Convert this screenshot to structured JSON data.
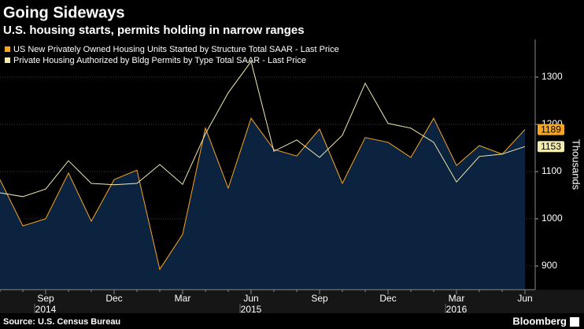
{
  "chart_data": {
    "type": "line",
    "title": "Going Sideways",
    "subtitle": "U.S. housing starts, permits holding in narrow ranges",
    "y_axis_label": "Thousands",
    "source": "Source: U.S. Census Bureau",
    "brand": "Bloomberg",
    "categories": [
      null,
      null,
      "Sep",
      null,
      null,
      "Dec",
      null,
      null,
      "Mar",
      null,
      null,
      "Jun",
      null,
      null,
      "Sep",
      null,
      null,
      "Dec",
      null,
      null,
      "Mar",
      null,
      null,
      "Jun"
    ],
    "year_labels": [
      {
        "label": "2014",
        "at": 2
      },
      {
        "label": "2015",
        "at": 11
      },
      {
        "label": "2016",
        "at": 20
      }
    ],
    "series": [
      {
        "name": "US New Privately Owned Housing Units Started by Structure Total SAAR - Last Price",
        "color": "#f5a623",
        "fill": "#0c2340",
        "values": [
          1083,
          985,
          1000,
          1097,
          995,
          1083,
          1103,
          893,
          967,
          1192,
          1065,
          1213,
          1147,
          1133,
          1190,
          1075,
          1172,
          1162,
          1130,
          1213,
          1113,
          1155,
          1137,
          1189
        ]
      },
      {
        "name": "Private Housing Authorized by Bldg Permits by Type Total SAAR - Last Price",
        "color": "#f3ebb0",
        "values": [
          1055,
          1047,
          1063,
          1123,
          1075,
          1072,
          1075,
          1115,
          1073,
          1180,
          1267,
          1333,
          1143,
          1167,
          1130,
          1177,
          1287,
          1202,
          1192,
          1162,
          1078,
          1132,
          1137,
          1153
        ]
      }
    ],
    "ylim": [
      850,
      1380
    ],
    "yticks": [
      900,
      1000,
      1100,
      1200,
      1300
    ],
    "y_axis_side": "right",
    "grid": true,
    "last_value_labels": true
  }
}
